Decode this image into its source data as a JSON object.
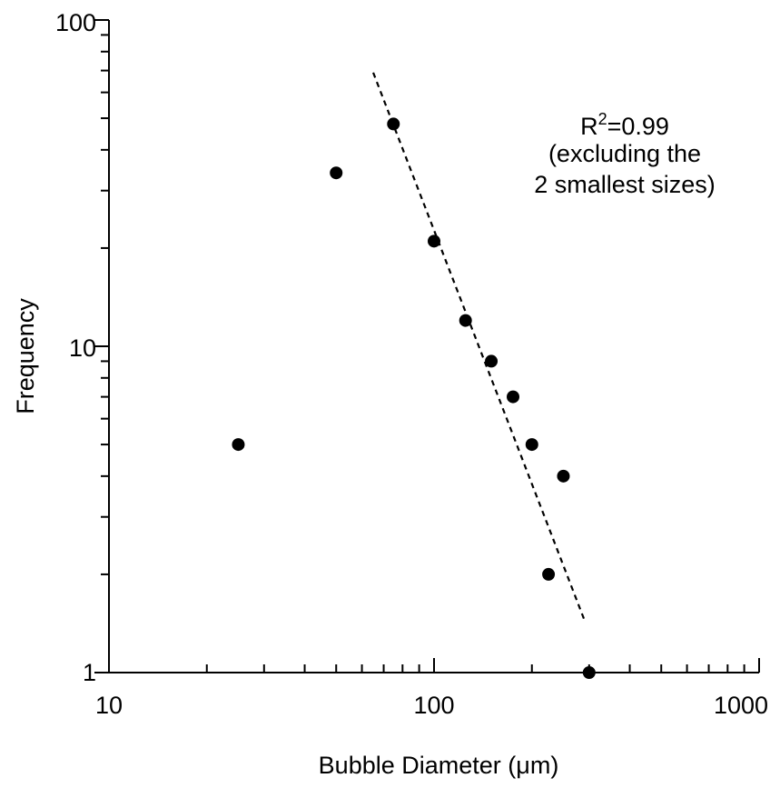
{
  "chart_data": {
    "type": "scatter",
    "x_scale": "log",
    "y_scale": "log",
    "xlim": [
      10,
      1000
    ],
    "ylim": [
      1,
      100
    ],
    "xlabel": "Bubble Diameter (μm)",
    "ylabel": "Frequency",
    "x_tick_labels": [
      "10",
      "100",
      "1000"
    ],
    "y_tick_labels": [
      "1",
      "10",
      "100"
    ],
    "grid": false,
    "points": [
      {
        "x": 25,
        "y": 5
      },
      {
        "x": 50,
        "y": 34
      },
      {
        "x": 75,
        "y": 48
      },
      {
        "x": 100,
        "y": 21
      },
      {
        "x": 125,
        "y": 12
      },
      {
        "x": 150,
        "y": 9
      },
      {
        "x": 175,
        "y": 7
      },
      {
        "x": 200,
        "y": 5
      },
      {
        "x": 225,
        "y": 2
      },
      {
        "x": 250,
        "y": 4
      },
      {
        "x": 300,
        "y": 1
      }
    ],
    "fit_line": {
      "style": "dashed",
      "x": [
        65,
        290
      ],
      "y": [
        69,
        1.45
      ]
    },
    "annotation": {
      "r_symbol": "R",
      "r_exponent": "2",
      "r_value": "=0.99",
      "line2": "(excluding the",
      "line3": "2 smallest sizes)"
    }
  }
}
